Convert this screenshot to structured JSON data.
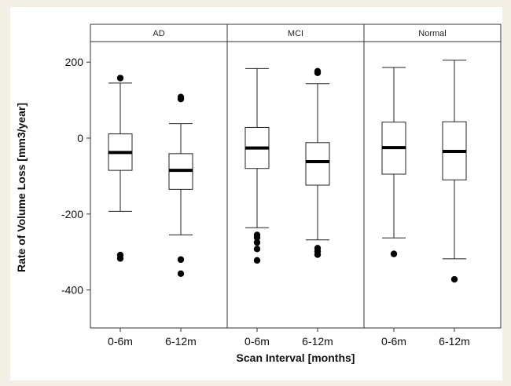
{
  "chart_data": {
    "type": "boxplot",
    "xlabel": "Scan Interval [months]",
    "ylabel": "Rate of Volume Loss [mm3/year]",
    "ylim": [
      -500,
      300
    ],
    "yticks": [
      200,
      0,
      -200,
      -400
    ],
    "categories": [
      "0-6m",
      "6-12m"
    ],
    "panels": [
      {
        "name": "AD",
        "boxes": [
          {
            "category": "0-6m",
            "whisker_low": -193,
            "q1": -85,
            "median": -38,
            "q3": 11,
            "whisker_high": 145,
            "outliers": [
              158,
              -308,
              -317
            ]
          },
          {
            "category": "6-12m",
            "whisker_low": -255,
            "q1": -135,
            "median": -85,
            "q3": -41,
            "whisker_high": 38,
            "outliers": [
              108,
              103,
              -320,
              -357
            ]
          }
        ]
      },
      {
        "name": "MCI",
        "boxes": [
          {
            "category": "0-6m",
            "whisker_low": -236,
            "q1": -80,
            "median": -26,
            "q3": 28,
            "whisker_high": 183,
            "outliers": [
              -255,
              -262,
              -275,
              -292,
              -322
            ]
          },
          {
            "category": "6-12m",
            "whisker_low": -268,
            "q1": -124,
            "median": -62,
            "q3": -12,
            "whisker_high": 143,
            "outliers": [
              176,
              172,
              -290,
              -298,
              -307
            ]
          }
        ]
      },
      {
        "name": "Normal",
        "boxes": [
          {
            "category": "0-6m",
            "whisker_low": -263,
            "q1": -95,
            "median": -25,
            "q3": 42,
            "whisker_high": 186,
            "outliers": [
              -305
            ]
          },
          {
            "category": "6-12m",
            "whisker_low": -318,
            "q1": -110,
            "median": -35,
            "q3": 43,
            "whisker_high": 205,
            "outliers": [
              -372
            ]
          }
        ]
      }
    ]
  }
}
